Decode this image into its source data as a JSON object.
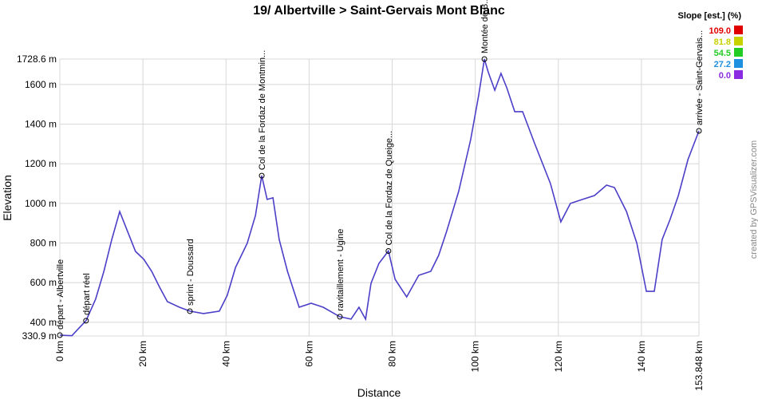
{
  "chart_data": {
    "type": "line",
    "title": "19/ Albertville > Saint-Gervais Mont Blanc",
    "x_label": "Distance",
    "y_label": "Elevation",
    "credit": "created by GPSVisualizer.com",
    "color": "#4b3fc8",
    "x": [
      0,
      2.9,
      4.8,
      6.3,
      8.6,
      10.6,
      12.5,
      14.4,
      16.3,
      18.2,
      20.2,
      22.1,
      24.0,
      25.9,
      28.8,
      31.3,
      34.6,
      38.4,
      40.3,
      42.3,
      45.1,
      47.1,
      48.6,
      49.9,
      51.3,
      52.8,
      54.8,
      57.6,
      60.5,
      63.4,
      67.4,
      70.1,
      72.0,
      73.6,
      74.9,
      76.8,
      79.1,
      80.7,
      83.5,
      86.4,
      89.3,
      91.2,
      93.1,
      96.0,
      98.9,
      100.8,
      102.2,
      103.1,
      104.7,
      106.2,
      107.6,
      109.5,
      111.4,
      114.3,
      118.1,
      120.6,
      122.9,
      125.8,
      128.7,
      131.6,
      133.5,
      136.4,
      138.9,
      141.2,
      143.1,
      145.0,
      146.9,
      148.9,
      151.2,
      153.848
    ],
    "values": [
      335,
      332,
      375,
      408,
      516,
      657,
      818,
      959,
      858,
      758,
      718,
      657,
      577,
      504,
      476,
      456,
      444,
      456,
      536,
      677,
      798,
      939,
      1140,
      1020,
      1028,
      818,
      657,
      476,
      496,
      476,
      428,
      416,
      476,
      416,
      597,
      697,
      760,
      617,
      528,
      637,
      657,
      738,
      858,
      1060,
      1322,
      1543,
      1728.6,
      1664,
      1571,
      1656,
      1583,
      1463,
      1463,
      1302,
      1100,
      907,
      1000,
      1020,
      1040,
      1092,
      1080,
      959,
      798,
      556,
      556,
      818,
      919,
      1040,
      1221,
      1366
    ],
    "waypoints": [
      {
        "label": "départ - Albertville",
        "x": 0,
        "y": 335
      },
      {
        "label": "départ réel",
        "x": 6.3,
        "y": 408
      },
      {
        "label": "sprint - Doussard",
        "x": 31.3,
        "y": 456
      },
      {
        "label": "Col de la Fordaz de Montmin...",
        "x": 48.6,
        "y": 1140
      },
      {
        "label": "ravitaillement - Ugine",
        "x": 67.4,
        "y": 428
      },
      {
        "label": "Col de la Fordaz de Queige...",
        "x": 79.1,
        "y": 760
      },
      {
        "label": "Montée de B...",
        "x": 102.2,
        "y": 1728.6
      },
      {
        "label": "arrivée - Saint-Gervais...",
        "x": 153.848,
        "y": 1366
      }
    ],
    "xlim": [
      0,
      153.848
    ],
    "xticks": [
      {
        "value": 0,
        "label": "0 km"
      },
      {
        "value": 20,
        "label": "20 km"
      },
      {
        "value": 40,
        "label": "40 km"
      },
      {
        "value": 60,
        "label": "60 km"
      },
      {
        "value": 80,
        "label": "80 km"
      },
      {
        "value": 100,
        "label": "100 km"
      },
      {
        "value": 120,
        "label": "120 km"
      },
      {
        "value": 140,
        "label": "140 km"
      },
      {
        "value": 153.848,
        "label": "153.848 km"
      }
    ],
    "ylim": [
      330.9,
      1728.6
    ],
    "yticks": [
      {
        "value": 330.9,
        "label": "330.9 m"
      },
      {
        "value": 400,
        "label": "400 m"
      },
      {
        "value": 600,
        "label": "600 m"
      },
      {
        "value": 800,
        "label": "800 m"
      },
      {
        "value": 1000,
        "label": "1000 m"
      },
      {
        "value": 1200,
        "label": "1200 m"
      },
      {
        "value": 1400,
        "label": "1400 m"
      },
      {
        "value": 1600,
        "label": "1600 m"
      },
      {
        "value": 1728.6,
        "label": "1728.6 m"
      }
    ],
    "grid": true,
    "legend": {
      "title": "Slope [est.] (%)",
      "entries": [
        {
          "value": 109,
          "label": "109.0",
          "color": "#e00000"
        },
        {
          "value": 81.8,
          "label": "81.8",
          "color": "#c8d200"
        },
        {
          "value": 54.5,
          "label": "54.5",
          "color": "#22cc22"
        },
        {
          "value": 27.2,
          "label": "27.2",
          "color": "#1e90e0"
        },
        {
          "value": 0,
          "label": "0.0",
          "color": "#8a2be2"
        }
      ]
    }
  }
}
